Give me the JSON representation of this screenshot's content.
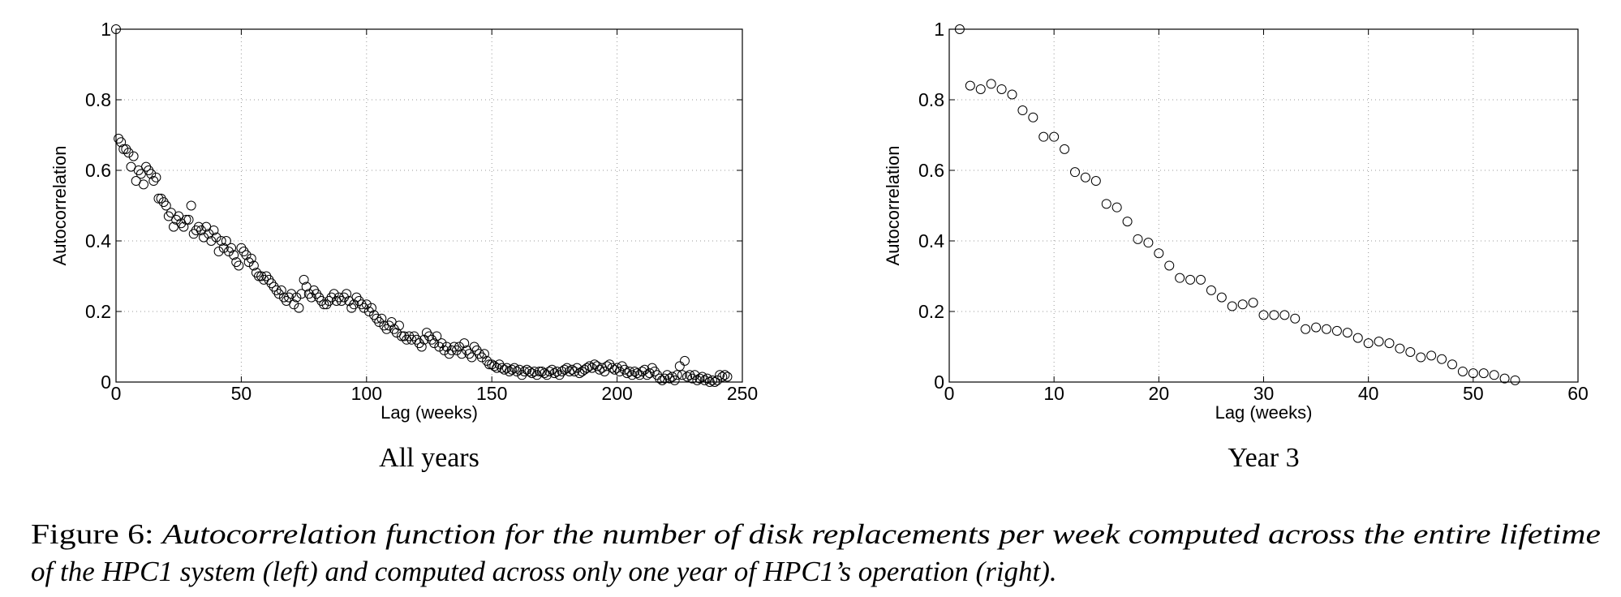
{
  "chart_data": [
    {
      "type": "scatter",
      "subtitle": "All years",
      "xlabel": "Lag (weeks)",
      "ylabel": "Autocorrelation",
      "color": "#000000",
      "grid": true,
      "xlim": [
        0,
        250
      ],
      "ylim": [
        0,
        1
      ],
      "xticks": [
        0,
        50,
        100,
        150,
        200,
        250
      ],
      "yticks": [
        0,
        0.2,
        0.4,
        0.6,
        0.8,
        1
      ],
      "x": [
        0,
        1,
        2,
        3,
        4,
        5,
        6,
        7,
        8,
        9,
        10,
        11,
        12,
        13,
        14,
        15,
        16,
        17,
        18,
        19,
        20,
        21,
        22,
        23,
        24,
        25,
        26,
        27,
        28,
        29,
        30,
        31,
        32,
        33,
        34,
        35,
        36,
        37,
        38,
        39,
        40,
        41,
        42,
        43,
        44,
        45,
        46,
        47,
        48,
        49,
        50,
        51,
        52,
        53,
        54,
        55,
        56,
        57,
        58,
        59,
        60,
        61,
        62,
        63,
        64,
        65,
        66,
        67,
        68,
        69,
        70,
        71,
        72,
        73,
        74,
        75,
        76,
        77,
        78,
        79,
        80,
        81,
        82,
        83,
        84,
        85,
        86,
        87,
        88,
        89,
        90,
        91,
        92,
        93,
        94,
        95,
        96,
        97,
        98,
        99,
        100,
        101,
        102,
        103,
        104,
        105,
        106,
        107,
        108,
        109,
        110,
        111,
        112,
        113,
        114,
        115,
        116,
        117,
        118,
        119,
        120,
        121,
        122,
        123,
        124,
        125,
        126,
        127,
        128,
        129,
        130,
        131,
        132,
        133,
        134,
        135,
        136,
        137,
        138,
        139,
        140,
        141,
        142,
        143,
        144,
        145,
        146,
        147,
        148,
        149,
        150,
        151,
        152,
        153,
        154,
        155,
        156,
        157,
        158,
        159,
        160,
        161,
        162,
        163,
        164,
        165,
        166,
        167,
        168,
        169,
        170,
        171,
        172,
        173,
        174,
        175,
        176,
        177,
        178,
        179,
        180,
        181,
        182,
        183,
        184,
        185,
        186,
        187,
        188,
        189,
        190,
        191,
        192,
        193,
        194,
        195,
        196,
        197,
        198,
        199,
        200,
        201,
        202,
        203,
        204,
        205,
        206,
        207,
        208,
        209,
        210,
        211,
        212,
        213,
        214,
        215,
        216,
        217,
        218,
        219,
        220,
        221,
        222,
        223,
        224,
        225,
        226,
        227,
        228,
        229,
        230,
        231,
        232,
        233,
        234,
        235,
        236,
        237,
        238,
        239,
        240,
        241,
        242,
        243,
        244
      ],
      "values": [
        1,
        0.69,
        0.68,
        0.66,
        0.66,
        0.65,
        0.61,
        0.64,
        0.57,
        0.6,
        0.59,
        0.56,
        0.61,
        0.6,
        0.59,
        0.57,
        0.58,
        0.52,
        0.52,
        0.51,
        0.5,
        0.47,
        0.48,
        0.44,
        0.46,
        0.47,
        0.45,
        0.44,
        0.46,
        0.46,
        0.5,
        0.42,
        0.43,
        0.44,
        0.43,
        0.41,
        0.44,
        0.42,
        0.4,
        0.43,
        0.41,
        0.37,
        0.4,
        0.38,
        0.4,
        0.37,
        0.38,
        0.36,
        0.34,
        0.33,
        0.38,
        0.37,
        0.36,
        0.34,
        0.35,
        0.33,
        0.31,
        0.3,
        0.3,
        0.29,
        0.3,
        0.29,
        0.28,
        0.27,
        0.26,
        0.25,
        0.26,
        0.24,
        0.23,
        0.24,
        0.25,
        0.22,
        0.24,
        0.21,
        0.25,
        0.29,
        0.27,
        0.25,
        0.24,
        0.26,
        0.25,
        0.24,
        0.23,
        0.22,
        0.22,
        0.23,
        0.24,
        0.25,
        0.23,
        0.24,
        0.23,
        0.24,
        0.25,
        0.23,
        0.21,
        0.22,
        0.24,
        0.23,
        0.22,
        0.21,
        0.22,
        0.2,
        0.21,
        0.19,
        0.18,
        0.17,
        0.18,
        0.16,
        0.15,
        0.16,
        0.17,
        0.15,
        0.14,
        0.16,
        0.13,
        0.13,
        0.12,
        0.13,
        0.12,
        0.13,
        0.12,
        0.11,
        0.1,
        0.12,
        0.14,
        0.13,
        0.12,
        0.11,
        0.13,
        0.1,
        0.11,
        0.09,
        0.1,
        0.08,
        0.09,
        0.1,
        0.09,
        0.1,
        0.08,
        0.11,
        0.09,
        0.08,
        0.07,
        0.1,
        0.09,
        0.08,
        0.07,
        0.08,
        0.06,
        0.05,
        0.05,
        0.045,
        0.04,
        0.05,
        0.04,
        0.035,
        0.04,
        0.03,
        0.035,
        0.04,
        0.03,
        0.035,
        0.02,
        0.03,
        0.035,
        0.03,
        0.025,
        0.03,
        0.02,
        0.03,
        0.03,
        0.025,
        0.02,
        0.03,
        0.035,
        0.025,
        0.03,
        0.02,
        0.03,
        0.035,
        0.04,
        0.03,
        0.035,
        0.03,
        0.04,
        0.025,
        0.03,
        0.035,
        0.04,
        0.045,
        0.04,
        0.05,
        0.045,
        0.035,
        0.04,
        0.03,
        0.045,
        0.05,
        0.04,
        0.035,
        0.04,
        0.03,
        0.045,
        0.035,
        0.025,
        0.03,
        0.02,
        0.03,
        0.025,
        0.02,
        0.03,
        0.035,
        0.02,
        0.025,
        0.04,
        0.03,
        0.02,
        0.01,
        0.005,
        0.01,
        0.02,
        0.01,
        0.015,
        0.005,
        0.02,
        0.045,
        0.02,
        0.06,
        0.015,
        0.02,
        0.01,
        0.02,
        0.005,
        0.01,
        0.015,
        0.005,
        0.01,
        0,
        0.005,
        0,
        0.005,
        0.02,
        0.015,
        0.02,
        0.015
      ]
    },
    {
      "type": "scatter",
      "subtitle": "Year 3",
      "xlabel": "Lag (weeks)",
      "ylabel": "Autocorrelation",
      "color": "#000000",
      "grid": true,
      "xlim": [
        0,
        60
      ],
      "ylim": [
        0,
        1
      ],
      "xticks": [
        0,
        10,
        20,
        30,
        40,
        50,
        60
      ],
      "yticks": [
        0,
        0.2,
        0.4,
        0.6,
        0.8,
        1
      ],
      "x": [
        1,
        2,
        3,
        4,
        5,
        6,
        7,
        8,
        9,
        10,
        11,
        12,
        13,
        14,
        15,
        16,
        17,
        18,
        19,
        20,
        21,
        22,
        23,
        24,
        25,
        26,
        27,
        28,
        29,
        30,
        31,
        32,
        33,
        34,
        35,
        36,
        37,
        38,
        39,
        40,
        41,
        42,
        43,
        44,
        45,
        46,
        47,
        48,
        49,
        50,
        51,
        52,
        53,
        54
      ],
      "values": [
        1,
        0.84,
        0.83,
        0.845,
        0.83,
        0.815,
        0.77,
        0.75,
        0.695,
        0.695,
        0.66,
        0.595,
        0.58,
        0.57,
        0.505,
        0.495,
        0.455,
        0.405,
        0.395,
        0.365,
        0.33,
        0.295,
        0.29,
        0.29,
        0.26,
        0.24,
        0.215,
        0.22,
        0.225,
        0.19,
        0.19,
        0.19,
        0.18,
        0.15,
        0.155,
        0.15,
        0.145,
        0.14,
        0.125,
        0.11,
        0.115,
        0.11,
        0.095,
        0.085,
        0.07,
        0.075,
        0.065,
        0.05,
        0.03,
        0.025,
        0.025,
        0.02,
        0.01,
        0.005
      ]
    }
  ],
  "caption": {
    "label": "Figure 6:",
    "lines": [
      "Autocorrelation function for the number of disk replacements per week computed across the entire lifetime",
      "of the HPC1 system (left) and computed across only one year of HPC1’s operation (right)."
    ]
  }
}
